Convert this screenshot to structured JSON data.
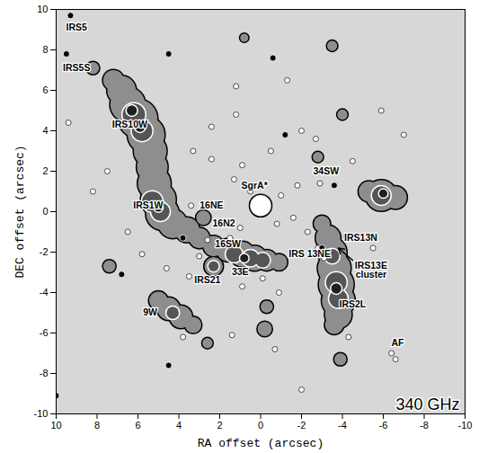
{
  "chart_data": {
    "type": "scatter",
    "x_label": "RA offset (arcsec)",
    "y_label": "DEC offset (arcsec)",
    "frequency_label": "340 GHz",
    "xlim": [
      10,
      -10
    ],
    "ylim": [
      -10,
      10
    ],
    "xticks": [
      10,
      8,
      6,
      4,
      2,
      0,
      -2,
      -4,
      -6,
      -8,
      -10
    ],
    "yticks": [
      -10,
      -8,
      -6,
      -4,
      -2,
      0,
      2,
      4,
      6,
      8,
      10
    ],
    "emission": [
      {
        "x": 7.2,
        "y": 6.5,
        "radius": 0.5,
        "level": 1
      },
      {
        "x": 6.8,
        "y": 6.0,
        "radius": 0.7,
        "level": 1
      },
      {
        "x": 6.5,
        "y": 5.3,
        "radius": 0.85,
        "level": 1
      },
      {
        "x": 6.0,
        "y": 4.6,
        "radius": 0.95,
        "level": 1
      },
      {
        "x": 5.6,
        "y": 3.8,
        "radius": 0.9,
        "level": 1
      },
      {
        "x": 5.4,
        "y": 3.0,
        "radius": 0.8,
        "level": 1
      },
      {
        "x": 5.3,
        "y": 2.2,
        "radius": 0.75,
        "level": 1
      },
      {
        "x": 5.2,
        "y": 1.4,
        "radius": 0.8,
        "level": 1
      },
      {
        "x": 5.0,
        "y": 0.6,
        "radius": 0.85,
        "level": 1
      },
      {
        "x": 4.8,
        "y": -0.1,
        "radius": 0.8,
        "level": 1
      },
      {
        "x": 4.3,
        "y": -0.6,
        "radius": 0.7,
        "level": 1
      },
      {
        "x": 3.6,
        "y": -0.9,
        "radius": 0.6,
        "level": 1
      },
      {
        "x": 3.0,
        "y": -1.3,
        "radius": 0.5,
        "level": 1
      },
      {
        "x": 2.3,
        "y": -1.7,
        "radius": 0.5,
        "level": 1
      },
      {
        "x": 1.6,
        "y": -1.9,
        "radius": 0.55,
        "level": 1
      },
      {
        "x": 0.9,
        "y": -2.1,
        "radius": 0.6,
        "level": 1
      },
      {
        "x": 0.3,
        "y": -2.3,
        "radius": 0.6,
        "level": 1
      },
      {
        "x": -0.3,
        "y": -2.4,
        "radius": 0.5,
        "level": 1
      },
      {
        "x": -0.9,
        "y": -2.5,
        "radius": 0.4,
        "level": 1
      },
      {
        "x": 2.8,
        "y": -0.3,
        "radius": 0.35,
        "level": 1
      },
      {
        "x": -3.0,
        "y": -0.6,
        "radius": 0.4,
        "level": 1
      },
      {
        "x": -3.3,
        "y": -1.3,
        "radius": 0.6,
        "level": 1
      },
      {
        "x": -3.5,
        "y": -2.0,
        "radius": 0.7,
        "level": 1
      },
      {
        "x": -3.6,
        "y": -2.8,
        "radius": 0.8,
        "level": 1
      },
      {
        "x": -3.7,
        "y": -3.6,
        "radius": 0.85,
        "level": 1
      },
      {
        "x": -3.8,
        "y": -4.4,
        "radius": 0.8,
        "level": 1
      },
      {
        "x": -3.8,
        "y": -5.1,
        "radius": 0.65,
        "level": 1
      },
      {
        "x": -3.6,
        "y": -5.6,
        "radius": 0.45,
        "level": 1
      },
      {
        "x": 5.0,
        "y": -4.4,
        "radius": 0.45,
        "level": 1
      },
      {
        "x": 4.5,
        "y": -4.8,
        "radius": 0.55,
        "level": 1
      },
      {
        "x": 3.9,
        "y": -5.2,
        "radius": 0.55,
        "level": 1
      },
      {
        "x": 3.3,
        "y": -5.6,
        "radius": 0.4,
        "level": 1
      },
      {
        "x": -5.3,
        "y": 1.0,
        "radius": 0.5,
        "level": 1
      },
      {
        "x": -5.9,
        "y": 0.8,
        "radius": 0.75,
        "level": 1
      },
      {
        "x": -6.6,
        "y": 0.7,
        "radius": 0.55,
        "level": 1
      },
      {
        "x": 2.3,
        "y": -2.7,
        "radius": 0.45,
        "level": 1
      },
      {
        "x": 8.2,
        "y": 7.1,
        "radius": 0.3,
        "level": 1
      },
      {
        "x": -0.2,
        "y": -5.8,
        "radius": 0.35,
        "level": 1
      },
      {
        "x": -0.3,
        "y": -4.7,
        "radius": 0.3,
        "level": 1
      },
      {
        "x": 2.6,
        "y": -6.5,
        "radius": 0.25,
        "level": 1
      },
      {
        "x": -2.8,
        "y": 2.7,
        "radius": 0.25,
        "level": 1
      },
      {
        "x": -3.9,
        "y": -7.3,
        "radius": 0.3,
        "level": 1
      },
      {
        "x": 7.4,
        "y": -2.7,
        "radius": 0.3,
        "level": 1
      },
      {
        "x": -3.5,
        "y": 8.2,
        "radius": 0.25,
        "level": 1
      },
      {
        "x": -4.0,
        "y": 4.8,
        "radius": 0.25,
        "level": 1
      },
      {
        "x": 0.8,
        "y": 8.6,
        "radius": 0.2,
        "level": 1
      },
      {
        "x": 6.2,
        "y": 4.8,
        "radius": 0.55,
        "level": 2
      },
      {
        "x": 5.8,
        "y": 4.0,
        "radius": 0.5,
        "level": 2
      },
      {
        "x": 5.3,
        "y": 0.5,
        "radius": 0.5,
        "level": 2
      },
      {
        "x": 4.9,
        "y": 0.0,
        "radius": 0.45,
        "level": 2
      },
      {
        "x": 1.3,
        "y": -2.1,
        "radius": 0.4,
        "level": 2
      },
      {
        "x": 0.5,
        "y": -2.3,
        "radius": 0.4,
        "level": 2
      },
      {
        "x": -0.1,
        "y": -2.4,
        "radius": 0.35,
        "level": 2
      },
      {
        "x": -3.5,
        "y": -2.2,
        "radius": 0.35,
        "level": 2
      },
      {
        "x": -3.7,
        "y": -3.5,
        "radius": 0.5,
        "level": 2
      },
      {
        "x": -3.8,
        "y": -4.3,
        "radius": 0.45,
        "level": 2
      },
      {
        "x": 4.3,
        "y": -5.0,
        "radius": 0.3,
        "level": 2
      },
      {
        "x": -5.9,
        "y": 0.8,
        "radius": 0.45,
        "level": 2
      },
      {
        "x": 2.3,
        "y": -2.7,
        "radius": 0.25,
        "level": 2
      },
      {
        "x": 6.3,
        "y": 5.0,
        "radius": 0.25,
        "level": 3
      },
      {
        "x": 5.9,
        "y": 4.2,
        "radius": 0.25,
        "level": 3
      },
      {
        "x": 5.0,
        "y": 0.2,
        "radius": 0.2,
        "level": 3
      },
      {
        "x": 0.8,
        "y": -2.3,
        "radius": 0.2,
        "level": 3
      },
      {
        "x": -3.7,
        "y": -3.8,
        "radius": 0.25,
        "level": 3
      },
      {
        "x": -6.0,
        "y": 0.9,
        "radius": 0.2,
        "level": 3
      }
    ],
    "sgra": {
      "x": 0,
      "y": 0.3,
      "radius": 0.55
    },
    "sources": {
      "x": [
        3.4,
        1.3,
        0.9,
        2.4,
        3.3,
        2.4,
        1.2,
        -1.3,
        -2.0,
        -2.7,
        -0.5,
        0.5,
        -1.0,
        -0.8,
        1.0,
        1.5,
        2.6,
        3.0,
        3.5,
        -1.6,
        -2.3,
        -2.8,
        -3.1,
        -4.2,
        -1.8,
        -2.9,
        -4.5,
        -0.1,
        0.9,
        -0.9,
        1.4,
        -0.7,
        5.8,
        6.5,
        7.5,
        8.2,
        9.4,
        -6.4,
        -6.6,
        -5.9,
        -7.0,
        3.8,
        4.6,
        -4.3,
        -2.0,
        -5.5,
        1.2
      ],
      "y": [
        0.3,
        1.6,
        2.3,
        2.6,
        3.0,
        4.2,
        6.2,
        6.5,
        4.0,
        3.6,
        3.0,
        1.0,
        0.8,
        -0.6,
        -0.8,
        -1.3,
        -1.4,
        -2.2,
        -3.2,
        -0.3,
        -1.0,
        -1.8,
        -2.3,
        -1.2,
        1.3,
        1.4,
        2.5,
        -3.3,
        -3.7,
        -4.0,
        -6.1,
        -6.8,
        -2.1,
        -1.0,
        2.0,
        1.0,
        4.4,
        -7.0,
        -7.3,
        5.0,
        3.8,
        -6.2,
        -2.8,
        -6.2,
        -8.8,
        -1.8,
        4.8
      ]
    },
    "stars": {
      "x": [
        9.3,
        9.5,
        4.5,
        -0.6,
        -1.2,
        -3.6,
        3.8,
        6.8,
        4.5,
        10.0,
        -3.0
      ],
      "y": [
        9.7,
        7.8,
        7.8,
        7.6,
        3.8,
        1.3,
        -1.3,
        -3.1,
        -7.6,
        -9.1,
        -1.8
      ]
    },
    "labels": [
      {
        "text": "IRS5",
        "x": 9.0,
        "y": 9.1
      },
      {
        "text": "IRS5S",
        "x": 9.0,
        "y": 7.1
      },
      {
        "text": "IRS10W",
        "x": 6.4,
        "y": 4.3
      },
      {
        "text": "IRS1W",
        "x": 5.5,
        "y": 0.3
      },
      {
        "text": "16NE",
        "x": 2.4,
        "y": 0.3
      },
      {
        "text": "16N2",
        "x": 1.8,
        "y": -0.6
      },
      {
        "text": "SgrA*",
        "x": 0.3,
        "y": 1.3
      },
      {
        "text": "34SW",
        "x": -3.2,
        "y": 2.0
      },
      {
        "text": "IRS13N",
        "x": -4.9,
        "y": -1.3
      },
      {
        "text": "IRS 13NE",
        "x": -2.4,
        "y": -2.1
      },
      {
        "text": "IRS13E cluster",
        "x": -5.4,
        "y": -2.9
      },
      {
        "text": "16SW",
        "x": 1.6,
        "y": -1.6
      },
      {
        "text": "IRS21",
        "x": 2.6,
        "y": -3.4
      },
      {
        "text": "33E",
        "x": 1.0,
        "y": -3.0
      },
      {
        "text": "9W",
        "x": 5.4,
        "y": -5.0
      },
      {
        "text": "IRS2L",
        "x": -4.5,
        "y": -4.6
      },
      {
        "text": "AF",
        "x": -6.7,
        "y": -6.5
      }
    ],
    "arrows": [
      {
        "x1": -4.5,
        "y1": -2.4,
        "x2": -3.8,
        "y2": -1.8
      }
    ]
  }
}
